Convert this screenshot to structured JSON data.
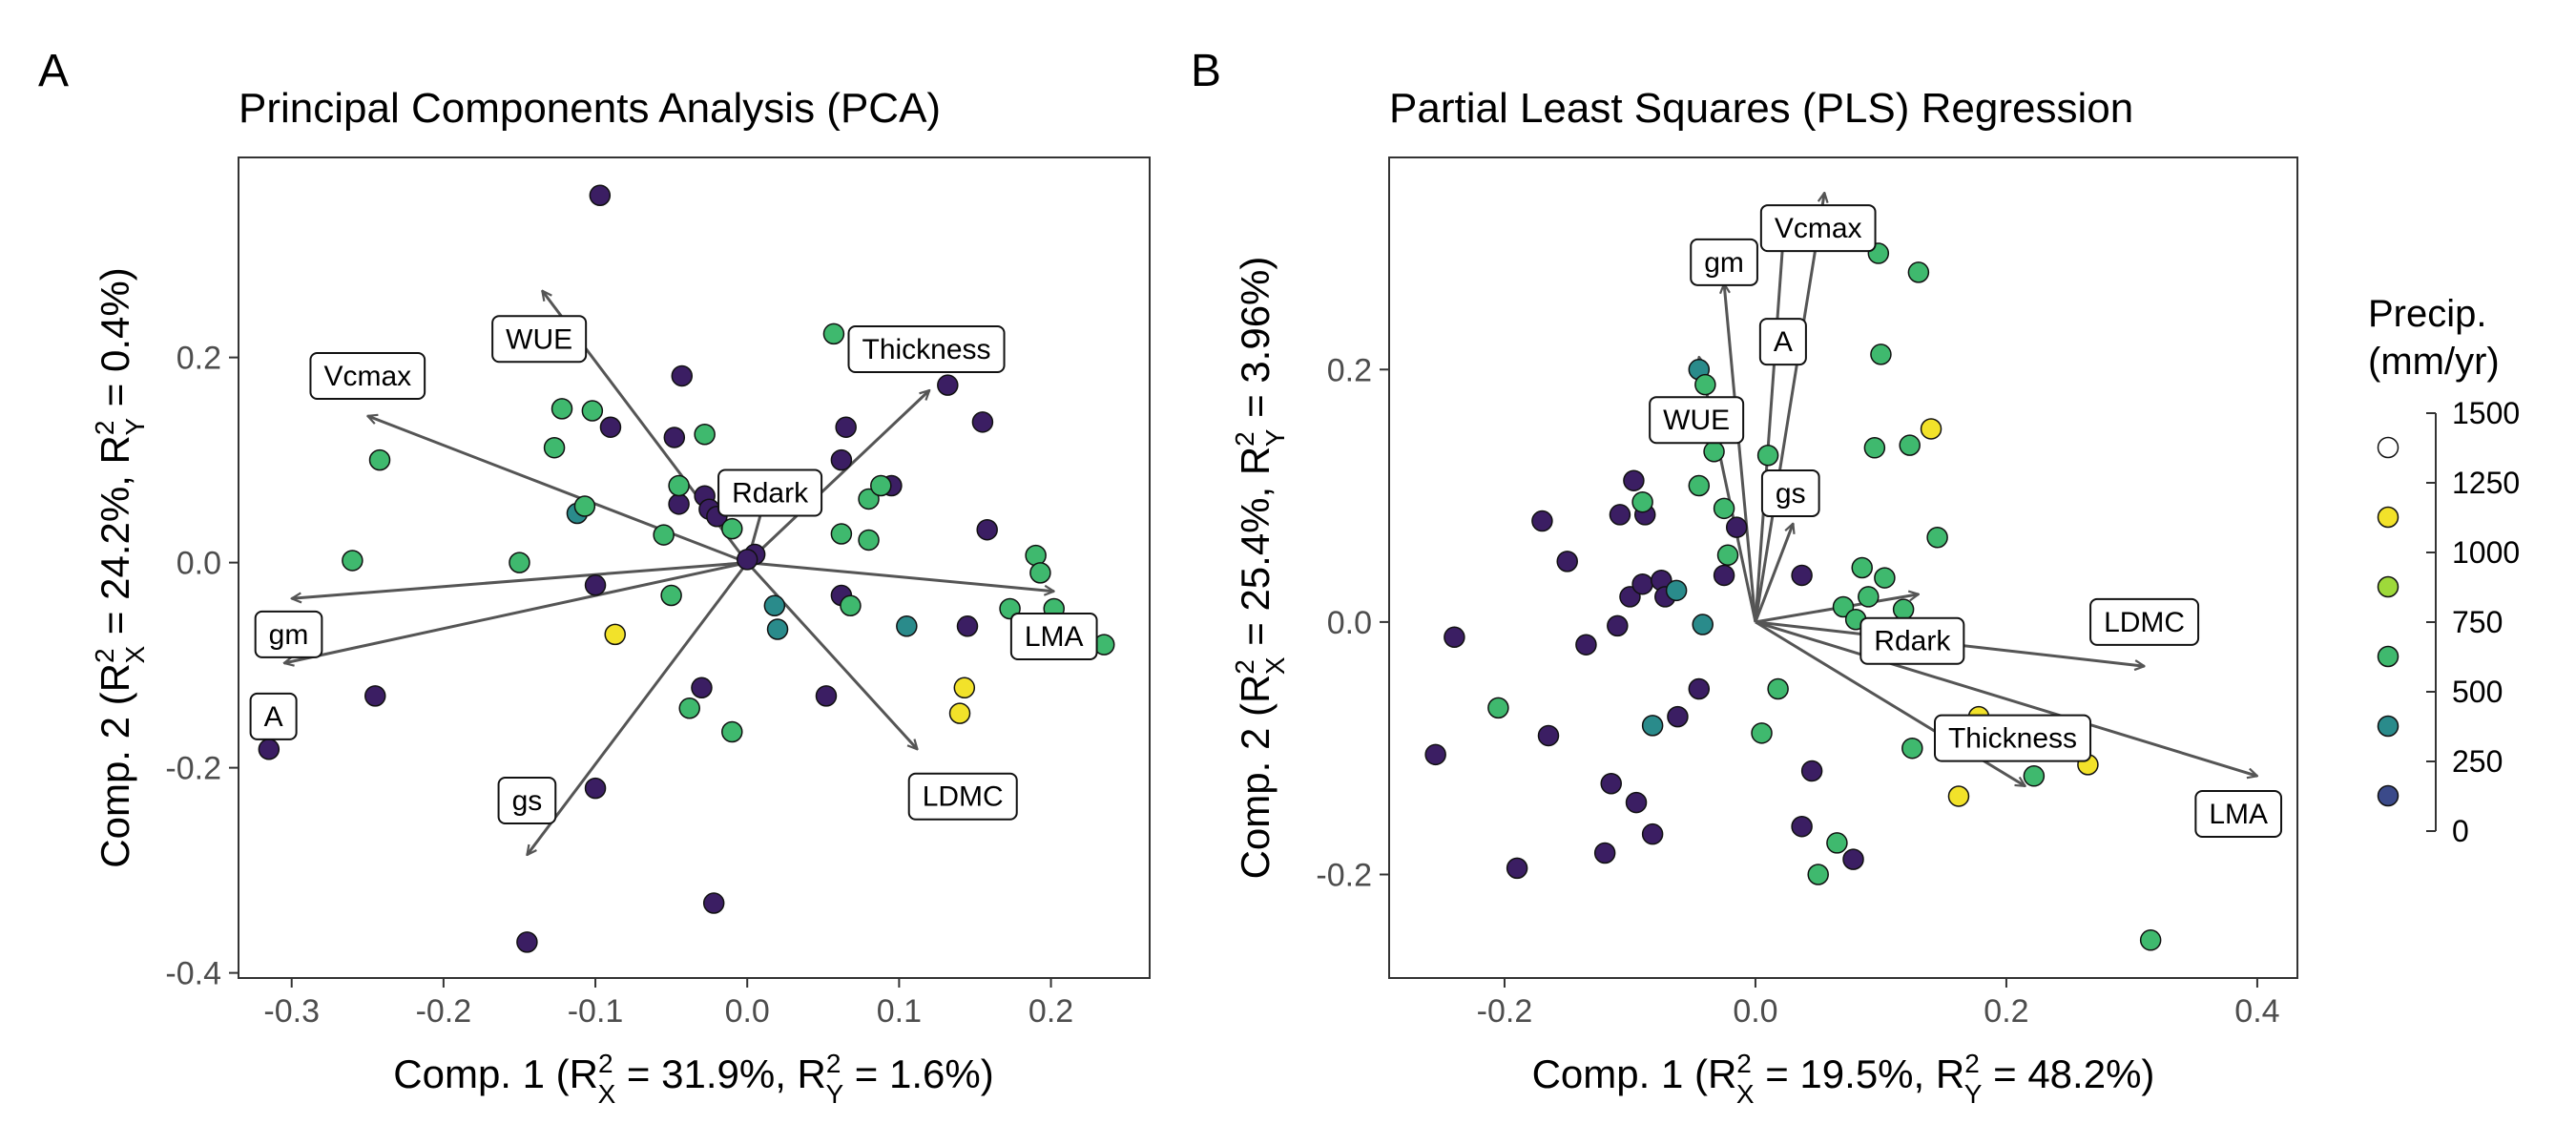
{
  "legend": {
    "title_line1": "Precip.",
    "title_line2": "(mm/yr)",
    "ticks": [
      "1500",
      "1250",
      "1000",
      "750",
      "500",
      "250",
      "0"
    ],
    "tick_values": [
      1500,
      1250,
      1000,
      750,
      500,
      250,
      0
    ],
    "colors": [
      "#ffffff",
      "#f2e22a",
      "#9ed93a",
      "#3fb96e",
      "#2a8b8b",
      "#3b4a8a",
      "#3b1e63"
    ]
  },
  "chart_data": [
    {
      "type": "scatter",
      "panel": "A",
      "title": "Principal Components Analysis (PCA)",
      "xlabel": {
        "pre": "Comp. 1 (R",
        "x_val": " = 31.9%,  R",
        "y_val": " = 1.6%)"
      },
      "ylabel": {
        "pre": "Comp. 2 (R",
        "x_val": " = 24.2%,  R",
        "y_val": " = 0.4%)"
      },
      "xlim": [
        -0.335,
        0.265
      ],
      "ylim": [
        -0.405,
        0.395
      ],
      "xticks": [
        -0.3,
        -0.2,
        -0.1,
        0.0,
        0.1,
        0.2
      ],
      "xtick_labels": [
        "-0.3",
        "-0.2",
        "-0.1",
        "0.0",
        "0.1",
        "0.2"
      ],
      "yticks": [
        -0.4,
        -0.2,
        0.0,
        0.2
      ],
      "ytick_labels": [
        "-0.4",
        "-0.2",
        "0.0",
        "0.2"
      ],
      "loadings": [
        {
          "name": "Vcmax",
          "x": -0.25,
          "y": 0.143,
          "lx": -0.25,
          "ly": 0.182
        },
        {
          "name": "WUE",
          "x": -0.135,
          "y": 0.265,
          "lx": -0.137,
          "ly": 0.218
        },
        {
          "name": "Thickness",
          "x": 0.12,
          "y": 0.168,
          "lx": 0.118,
          "ly": 0.208
        },
        {
          "name": "Rdark",
          "x": 0.015,
          "y": 0.08,
          "lx": 0.015,
          "ly": 0.068
        },
        {
          "name": "gm",
          "x": -0.3,
          "y": -0.035,
          "lx": -0.302,
          "ly": -0.07
        },
        {
          "name": "A",
          "x": -0.305,
          "y": -0.098,
          "lx": -0.312,
          "ly": -0.15
        },
        {
          "name": "gs",
          "x": -0.145,
          "y": -0.285,
          "lx": -0.145,
          "ly": -0.232
        },
        {
          "name": "LDMC",
          "x": 0.112,
          "y": -0.182,
          "lx": 0.142,
          "ly": -0.228
        },
        {
          "name": "LMA",
          "x": 0.202,
          "y": -0.028,
          "lx": 0.202,
          "ly": -0.072
        }
      ],
      "points": [
        {
          "x": -0.097,
          "y": 0.358,
          "c": 0
        },
        {
          "x": -0.315,
          "y": -0.182,
          "c": 0
        },
        {
          "x": -0.245,
          "y": -0.13,
          "c": 0
        },
        {
          "x": -0.145,
          "y": -0.37,
          "c": 0
        },
        {
          "x": -0.022,
          "y": -0.332,
          "c": 0
        },
        {
          "x": -0.1,
          "y": -0.22,
          "c": 0
        },
        {
          "x": -0.09,
          "y": 0.132,
          "c": 0
        },
        {
          "x": -0.043,
          "y": 0.182,
          "c": 0
        },
        {
          "x": -0.048,
          "y": 0.122,
          "c": 0
        },
        {
          "x": -0.045,
          "y": 0.057,
          "c": 0
        },
        {
          "x": -0.028,
          "y": 0.065,
          "c": 0
        },
        {
          "x": -0.025,
          "y": 0.052,
          "c": 0
        },
        {
          "x": -0.02,
          "y": 0.045,
          "c": 0
        },
        {
          "x": -0.1,
          "y": -0.022,
          "c": 0
        },
        {
          "x": -0.03,
          "y": -0.122,
          "c": 0
        },
        {
          "x": 0.005,
          "y": 0.008,
          "c": 0
        },
        {
          "x": 0.0,
          "y": 0.003,
          "c": 0
        },
        {
          "x": 0.065,
          "y": 0.132,
          "c": 0
        },
        {
          "x": 0.062,
          "y": 0.1,
          "c": 0
        },
        {
          "x": 0.062,
          "y": -0.032,
          "c": 0
        },
        {
          "x": 0.052,
          "y": -0.13,
          "c": 0
        },
        {
          "x": 0.132,
          "y": 0.173,
          "c": 0
        },
        {
          "x": 0.155,
          "y": 0.137,
          "c": 0
        },
        {
          "x": 0.158,
          "y": 0.032,
          "c": 0
        },
        {
          "x": 0.145,
          "y": -0.062,
          "c": 0
        },
        {
          "x": 0.095,
          "y": 0.075,
          "c": 0
        },
        {
          "x": -0.112,
          "y": 0.048,
          "c": 4
        },
        {
          "x": 0.018,
          "y": -0.042,
          "c": 4
        },
        {
          "x": 0.02,
          "y": -0.065,
          "c": 4
        },
        {
          "x": 0.105,
          "y": -0.062,
          "c": 4
        },
        {
          "x": -0.242,
          "y": 0.1,
          "c": 3
        },
        {
          "x": -0.26,
          "y": 0.002,
          "c": 3
        },
        {
          "x": -0.15,
          "y": 0.0,
          "c": 3
        },
        {
          "x": -0.127,
          "y": 0.112,
          "c": 3
        },
        {
          "x": -0.122,
          "y": 0.15,
          "c": 3
        },
        {
          "x": -0.102,
          "y": 0.148,
          "c": 3
        },
        {
          "x": -0.107,
          "y": 0.055,
          "c": 3
        },
        {
          "x": -0.055,
          "y": 0.027,
          "c": 3
        },
        {
          "x": -0.05,
          "y": -0.032,
          "c": 3
        },
        {
          "x": -0.045,
          "y": 0.075,
          "c": 3
        },
        {
          "x": -0.028,
          "y": 0.125,
          "c": 3
        },
        {
          "x": -0.01,
          "y": 0.033,
          "c": 3
        },
        {
          "x": 0.02,
          "y": 0.06,
          "c": 3
        },
        {
          "x": -0.038,
          "y": -0.142,
          "c": 3
        },
        {
          "x": -0.01,
          "y": -0.165,
          "c": 3
        },
        {
          "x": 0.057,
          "y": 0.223,
          "c": 3
        },
        {
          "x": 0.08,
          "y": 0.062,
          "c": 3
        },
        {
          "x": 0.062,
          "y": 0.028,
          "c": 3
        },
        {
          "x": 0.068,
          "y": -0.042,
          "c": 3
        },
        {
          "x": 0.08,
          "y": 0.022,
          "c": 3
        },
        {
          "x": 0.088,
          "y": 0.075,
          "c": 3
        },
        {
          "x": 0.19,
          "y": 0.007,
          "c": 3
        },
        {
          "x": 0.193,
          "y": -0.01,
          "c": 3
        },
        {
          "x": 0.173,
          "y": -0.045,
          "c": 3
        },
        {
          "x": 0.202,
          "y": -0.045,
          "c": 3
        },
        {
          "x": 0.235,
          "y": -0.08,
          "c": 3
        },
        {
          "x": -0.087,
          "y": -0.07,
          "c": 1
        },
        {
          "x": 0.143,
          "y": -0.122,
          "c": 1
        },
        {
          "x": 0.14,
          "y": -0.147,
          "c": 1
        }
      ]
    },
    {
      "type": "scatter",
      "panel": "B",
      "title": "Partial Least Squares (PLS) Regression",
      "xlabel": {
        "pre": "Comp. 1 (R",
        "x_val": " = 19.5%,  R",
        "y_val": " = 48.2%)"
      },
      "ylabel": {
        "pre": "Comp. 2 (R",
        "x_val": " = 25.4%,  R",
        "y_val": " = 3.96%)"
      },
      "xlim": [
        -0.292,
        0.432
      ],
      "ylim": [
        -0.282,
        0.368
      ],
      "xticks": [
        -0.2,
        0.0,
        0.2,
        0.4
      ],
      "xtick_labels": [
        "-0.2",
        "0.0",
        "0.2",
        "0.4"
      ],
      "yticks": [
        -0.2,
        0.0,
        0.2
      ],
      "ytick_labels": [
        "-0.2",
        "0.0",
        "0.2"
      ],
      "loadings": [
        {
          "name": "Vcmax",
          "x": 0.055,
          "y": 0.34,
          "lx": 0.05,
          "ly": 0.312
        },
        {
          "name": "gm",
          "x": -0.025,
          "y": 0.268,
          "lx": -0.025,
          "ly": 0.285
        },
        {
          "name": "A",
          "x": 0.022,
          "y": 0.302,
          "lx": 0.022,
          "ly": 0.222
        },
        {
          "name": "WUE",
          "x": -0.045,
          "y": 0.21,
          "lx": -0.047,
          "ly": 0.16
        },
        {
          "name": "gs",
          "x": 0.03,
          "y": 0.078,
          "lx": 0.028,
          "ly": 0.102
        },
        {
          "name": "Rdark",
          "x": 0.13,
          "y": 0.022,
          "lx": 0.125,
          "ly": -0.015
        },
        {
          "name": "LDMC",
          "x": 0.31,
          "y": -0.035,
          "lx": 0.31,
          "ly": 0.0
        },
        {
          "name": "Thickness",
          "x": 0.215,
          "y": -0.13,
          "lx": 0.205,
          "ly": -0.092
        },
        {
          "name": "LMA",
          "x": 0.4,
          "y": -0.122,
          "lx": 0.385,
          "ly": -0.152
        }
      ],
      "points": [
        {
          "x": -0.255,
          "y": -0.105,
          "c": 0
        },
        {
          "x": -0.24,
          "y": -0.012,
          "c": 0
        },
        {
          "x": -0.19,
          "y": -0.195,
          "c": 0
        },
        {
          "x": -0.17,
          "y": 0.08,
          "c": 0
        },
        {
          "x": -0.165,
          "y": -0.09,
          "c": 0
        },
        {
          "x": -0.15,
          "y": 0.048,
          "c": 0
        },
        {
          "x": -0.135,
          "y": -0.018,
          "c": 0
        },
        {
          "x": -0.12,
          "y": -0.183,
          "c": 0
        },
        {
          "x": -0.115,
          "y": -0.128,
          "c": 0
        },
        {
          "x": -0.11,
          "y": -0.003,
          "c": 0
        },
        {
          "x": -0.108,
          "y": 0.085,
          "c": 0
        },
        {
          "x": -0.1,
          "y": 0.02,
          "c": 0
        },
        {
          "x": -0.097,
          "y": 0.112,
          "c": 0
        },
        {
          "x": -0.095,
          "y": -0.143,
          "c": 0
        },
        {
          "x": -0.09,
          "y": 0.03,
          "c": 0
        },
        {
          "x": -0.088,
          "y": 0.085,
          "c": 0
        },
        {
          "x": -0.082,
          "y": -0.168,
          "c": 0
        },
        {
          "x": -0.075,
          "y": 0.033,
          "c": 0
        },
        {
          "x": -0.072,
          "y": 0.02,
          "c": 0
        },
        {
          "x": -0.062,
          "y": -0.075,
          "c": 0
        },
        {
          "x": -0.045,
          "y": -0.053,
          "c": 0
        },
        {
          "x": -0.025,
          "y": 0.037,
          "c": 0
        },
        {
          "x": -0.015,
          "y": 0.075,
          "c": 0
        },
        {
          "x": 0.037,
          "y": 0.037,
          "c": 0
        },
        {
          "x": 0.037,
          "y": -0.162,
          "c": 0
        },
        {
          "x": 0.045,
          "y": -0.118,
          "c": 0
        },
        {
          "x": 0.078,
          "y": -0.188,
          "c": 0
        },
        {
          "x": -0.082,
          "y": -0.082,
          "c": 4
        },
        {
          "x": -0.063,
          "y": 0.025,
          "c": 4
        },
        {
          "x": -0.042,
          "y": -0.002,
          "c": 4
        },
        {
          "x": -0.045,
          "y": 0.2,
          "c": 4
        },
        {
          "x": -0.205,
          "y": -0.068,
          "c": 3
        },
        {
          "x": -0.09,
          "y": 0.095,
          "c": 3
        },
        {
          "x": -0.045,
          "y": 0.108,
          "c": 3
        },
        {
          "x": -0.04,
          "y": 0.188,
          "c": 3
        },
        {
          "x": -0.033,
          "y": 0.135,
          "c": 3
        },
        {
          "x": -0.025,
          "y": 0.09,
          "c": 3
        },
        {
          "x": -0.022,
          "y": 0.053,
          "c": 3
        },
        {
          "x": 0.005,
          "y": -0.088,
          "c": 3
        },
        {
          "x": 0.01,
          "y": 0.132,
          "c": 3
        },
        {
          "x": 0.018,
          "y": -0.053,
          "c": 3
        },
        {
          "x": 0.05,
          "y": -0.2,
          "c": 3
        },
        {
          "x": 0.065,
          "y": -0.175,
          "c": 3
        },
        {
          "x": 0.07,
          "y": 0.012,
          "c": 3
        },
        {
          "x": 0.08,
          "y": 0.002,
          "c": 3
        },
        {
          "x": 0.085,
          "y": 0.043,
          "c": 3
        },
        {
          "x": 0.09,
          "y": 0.02,
          "c": 3
        },
        {
          "x": 0.095,
          "y": 0.138,
          "c": 3
        },
        {
          "x": 0.098,
          "y": 0.292,
          "c": 3
        },
        {
          "x": 0.1,
          "y": 0.212,
          "c": 3
        },
        {
          "x": 0.103,
          "y": 0.035,
          "c": 3
        },
        {
          "x": 0.118,
          "y": 0.01,
          "c": 3
        },
        {
          "x": 0.123,
          "y": 0.14,
          "c": 3
        },
        {
          "x": 0.13,
          "y": 0.277,
          "c": 3
        },
        {
          "x": 0.125,
          "y": -0.1,
          "c": 3
        },
        {
          "x": 0.145,
          "y": 0.067,
          "c": 3
        },
        {
          "x": 0.222,
          "y": -0.122,
          "c": 3
        },
        {
          "x": 0.315,
          "y": -0.252,
          "c": 3
        },
        {
          "x": 0.14,
          "y": 0.153,
          "c": 1
        },
        {
          "x": 0.162,
          "y": -0.138,
          "c": 1
        },
        {
          "x": 0.178,
          "y": -0.075,
          "c": 1
        },
        {
          "x": 0.265,
          "y": -0.113,
          "c": 1
        }
      ]
    }
  ]
}
